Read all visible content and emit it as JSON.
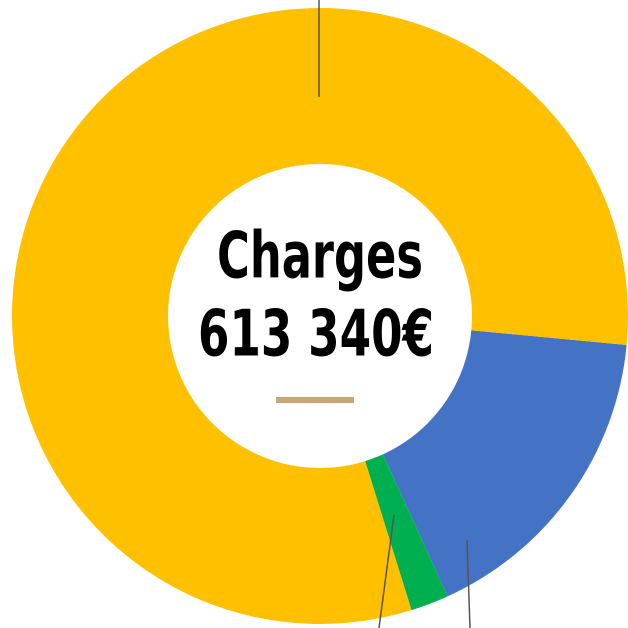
{
  "chart_data": {
    "type": "donut",
    "title": "Charges",
    "subtitle": "613 340€",
    "start_angle": 95.4,
    "series": [
      {
        "color": "#4472C4",
        "values": [
          16.7
        ]
      },
      {
        "color": "#00B050",
        "values": [
          2
        ]
      },
      {
        "color": "#FFC000",
        "values": [
          81.3
        ]
      }
    ]
  }
}
